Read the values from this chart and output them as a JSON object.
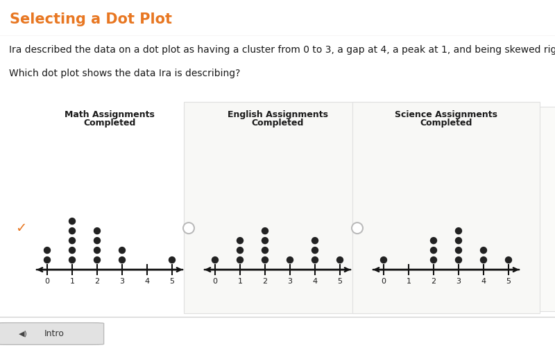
{
  "title": "Selecting a Dot Plot",
  "question_line1": "Ira described the data on a dot plot as having a cluster from 0 to 3, a gap at 4, a peak at 1, and being skewed right.",
  "question_line2": "Which dot plot shows the data Ira is describing?",
  "bg_color": "#ffffff",
  "title_color": "#e87722",
  "header_bg": "#f0ebe3",
  "plots": [
    {
      "title_line1": "Math Assignments",
      "title_line2": "Completed",
      "dots": [
        2,
        5,
        4,
        2,
        0,
        1
      ],
      "selected": true
    },
    {
      "title_line1": "English Assignments",
      "title_line2": "Completed",
      "dots": [
        1,
        3,
        4,
        1,
        3,
        1
      ],
      "selected": false
    },
    {
      "title_line1": "Science Assignments",
      "title_line2": "Completed",
      "dots": [
        1,
        0,
        3,
        4,
        2,
        1
      ],
      "selected": false
    }
  ],
  "dot_color": "#222222",
  "axis_color": "#111111",
  "checkmark_color": "#e87722",
  "footer_bg": "#ebebeb",
  "footer_sep_color": "#cccccc",
  "panel_bg": "#f5f5f5",
  "panel_edge": "#dddddd"
}
